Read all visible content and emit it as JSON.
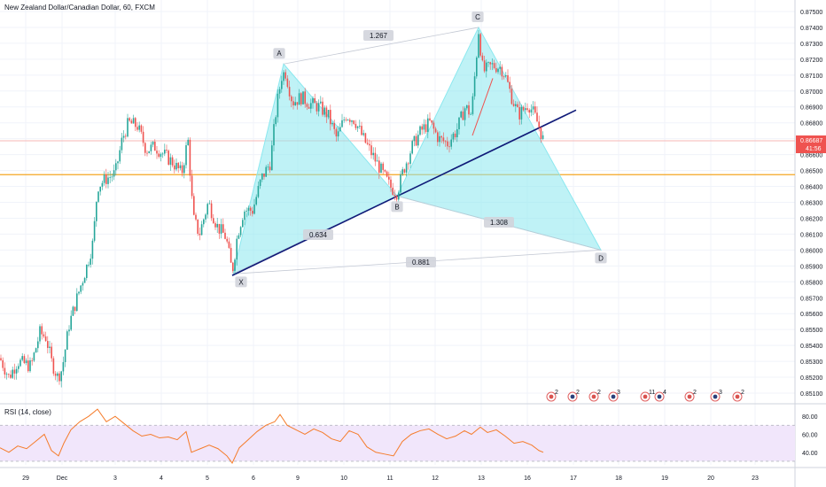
{
  "header": {
    "symbol_title": "New Zealand Dollar/Canadian Dollar, 60, FXCM"
  },
  "colors": {
    "bull": "#26a69a",
    "bear": "#ef5350",
    "pattern_fill": "#8be8ef",
    "trendline": "#0f1a78",
    "orange_line": "#f5a623",
    "red_line": "#f7b7b5",
    "rsi_line": "#f57c2b",
    "rsi_band": "#f1e6fb"
  },
  "price_axis": {
    "ticks": [
      "0.87500",
      "0.87400",
      "0.87300",
      "0.87200",
      "0.87100",
      "0.87000",
      "0.86900",
      "0.86800",
      "0.86700",
      "0.86600",
      "0.86500",
      "0.86400",
      "0.86300",
      "0.86200",
      "0.86100",
      "0.86000",
      "0.85900",
      "0.85800",
      "0.85700",
      "0.85600",
      "0.85500",
      "0.85400",
      "0.85300",
      "0.85200",
      "0.85100"
    ],
    "current_price": "0.86687",
    "countdown": "41:56"
  },
  "time_axis": {
    "ticks": [
      "29",
      "Dec",
      "3",
      "4",
      "5",
      "6",
      "9",
      "10",
      "11",
      "12",
      "13",
      "16",
      "17",
      "18",
      "19",
      "20",
      "23"
    ]
  },
  "rsi": {
    "title": "RSI (14, close)",
    "ticks": [
      "80.00",
      "60.00",
      "40.00"
    ],
    "upper": 70,
    "lower": 30
  },
  "chart_data": {
    "type": "candlestick",
    "title": "New Zealand Dollar/Canadian Dollar, 60, FXCM",
    "ylim": [
      0.8505,
      0.8755
    ],
    "close_path": [
      [
        0,
        0.8532
      ],
      [
        10,
        0.852
      ],
      [
        20,
        0.853
      ],
      [
        35,
        0.8527
      ],
      [
        45,
        0.8548
      ],
      [
        52,
        0.8545
      ],
      [
        58,
        0.853
      ],
      [
        65,
        0.852
      ],
      [
        70,
        0.8525
      ],
      [
        78,
        0.8553
      ],
      [
        88,
        0.8572
      ],
      [
        98,
        0.859
      ],
      [
        105,
        0.8605
      ],
      [
        110,
        0.864
      ],
      [
        120,
        0.8645
      ],
      [
        130,
        0.8648
      ],
      [
        138,
        0.867
      ],
      [
        145,
        0.868
      ],
      [
        155,
        0.8678
      ],
      [
        165,
        0.8663
      ],
      [
        175,
        0.8665
      ],
      [
        185,
        0.866
      ],
      [
        195,
        0.8655
      ],
      [
        205,
        0.8648
      ],
      [
        212,
        0.867
      ],
      [
        218,
        0.862
      ],
      [
        225,
        0.861
      ],
      [
        235,
        0.863
      ],
      [
        245,
        0.8615
      ],
      [
        255,
        0.8608
      ],
      [
        262,
        0.8586
      ],
      [
        268,
        0.861
      ],
      [
        275,
        0.8625
      ],
      [
        285,
        0.8625
      ],
      [
        295,
        0.8645
      ],
      [
        305,
        0.8655
      ],
      [
        312,
        0.869
      ],
      [
        318,
        0.871
      ],
      [
        322,
        0.8712
      ],
      [
        330,
        0.8693
      ],
      [
        340,
        0.8696
      ],
      [
        350,
        0.8692
      ],
      [
        360,
        0.869
      ],
      [
        370,
        0.8685
      ],
      [
        380,
        0.867
      ],
      [
        390,
        0.8685
      ],
      [
        400,
        0.8682
      ],
      [
        410,
        0.867
      ],
      [
        420,
        0.866
      ],
      [
        430,
        0.865
      ],
      [
        440,
        0.864
      ],
      [
        448,
        0.8636
      ],
      [
        455,
        0.865
      ],
      [
        465,
        0.8665
      ],
      [
        475,
        0.8675
      ],
      [
        485,
        0.868
      ],
      [
        495,
        0.867
      ],
      [
        505,
        0.8667
      ],
      [
        515,
        0.8675
      ],
      [
        525,
        0.869
      ],
      [
        532,
        0.8685
      ],
      [
        540,
        0.8738
      ],
      [
        545,
        0.8712
      ],
      [
        555,
        0.8716
      ],
      [
        565,
        0.8715
      ],
      [
        570,
        0.871
      ],
      [
        578,
        0.8695
      ],
      [
        585,
        0.8685
      ],
      [
        590,
        0.8688
      ],
      [
        596,
        0.8692
      ],
      [
        602,
        0.8686
      ],
      [
        608,
        0.8678
      ],
      [
        613,
        0.8669
      ]
    ],
    "rsi_path": [
      [
        0,
        45
      ],
      [
        10,
        40
      ],
      [
        20,
        47
      ],
      [
        30,
        44
      ],
      [
        40,
        52
      ],
      [
        50,
        60
      ],
      [
        58,
        42
      ],
      [
        66,
        36
      ],
      [
        72,
        50
      ],
      [
        80,
        65
      ],
      [
        90,
        74
      ],
      [
        100,
        80
      ],
      [
        110,
        88
      ],
      [
        120,
        74
      ],
      [
        130,
        80
      ],
      [
        140,
        72
      ],
      [
        150,
        64
      ],
      [
        160,
        58
      ],
      [
        170,
        60
      ],
      [
        180,
        56
      ],
      [
        190,
        57
      ],
      [
        200,
        54
      ],
      [
        210,
        63
      ],
      [
        216,
        40
      ],
      [
        226,
        44
      ],
      [
        236,
        48
      ],
      [
        246,
        44
      ],
      [
        256,
        36
      ],
      [
        262,
        28
      ],
      [
        270,
        45
      ],
      [
        280,
        54
      ],
      [
        290,
        63
      ],
      [
        300,
        70
      ],
      [
        310,
        74
      ],
      [
        316,
        82
      ],
      [
        324,
        70
      ],
      [
        334,
        65
      ],
      [
        344,
        60
      ],
      [
        354,
        66
      ],
      [
        364,
        62
      ],
      [
        374,
        55
      ],
      [
        384,
        52
      ],
      [
        394,
        64
      ],
      [
        404,
        60
      ],
      [
        414,
        46
      ],
      [
        424,
        40
      ],
      [
        434,
        38
      ],
      [
        444,
        36
      ],
      [
        454,
        52
      ],
      [
        464,
        60
      ],
      [
        474,
        64
      ],
      [
        484,
        66
      ],
      [
        494,
        60
      ],
      [
        504,
        55
      ],
      [
        514,
        58
      ],
      [
        524,
        64
      ],
      [
        532,
        60
      ],
      [
        542,
        68
      ],
      [
        550,
        62
      ],
      [
        560,
        65
      ],
      [
        570,
        58
      ],
      [
        580,
        50
      ],
      [
        590,
        52
      ],
      [
        600,
        48
      ],
      [
        608,
        42
      ],
      [
        613,
        40
      ]
    ],
    "pattern": {
      "points": [
        {
          "label": "X",
          "price": 0.8585
        },
        {
          "label": "A",
          "price": 0.8717
        },
        {
          "label": "B",
          "price": 0.8634
        },
        {
          "label": "C",
          "price": 0.874
        },
        {
          "label": "D",
          "price": 0.86
        }
      ],
      "ratios": [
        "1.267",
        "0.634",
        "1.308",
        "0.881"
      ]
    },
    "horizontal_lines": [
      0.86687,
      0.86474
    ],
    "event_markers": [
      "2",
      "2",
      "2",
      "3",
      "11",
      "4",
      "2",
      "3",
      "2"
    ]
  }
}
